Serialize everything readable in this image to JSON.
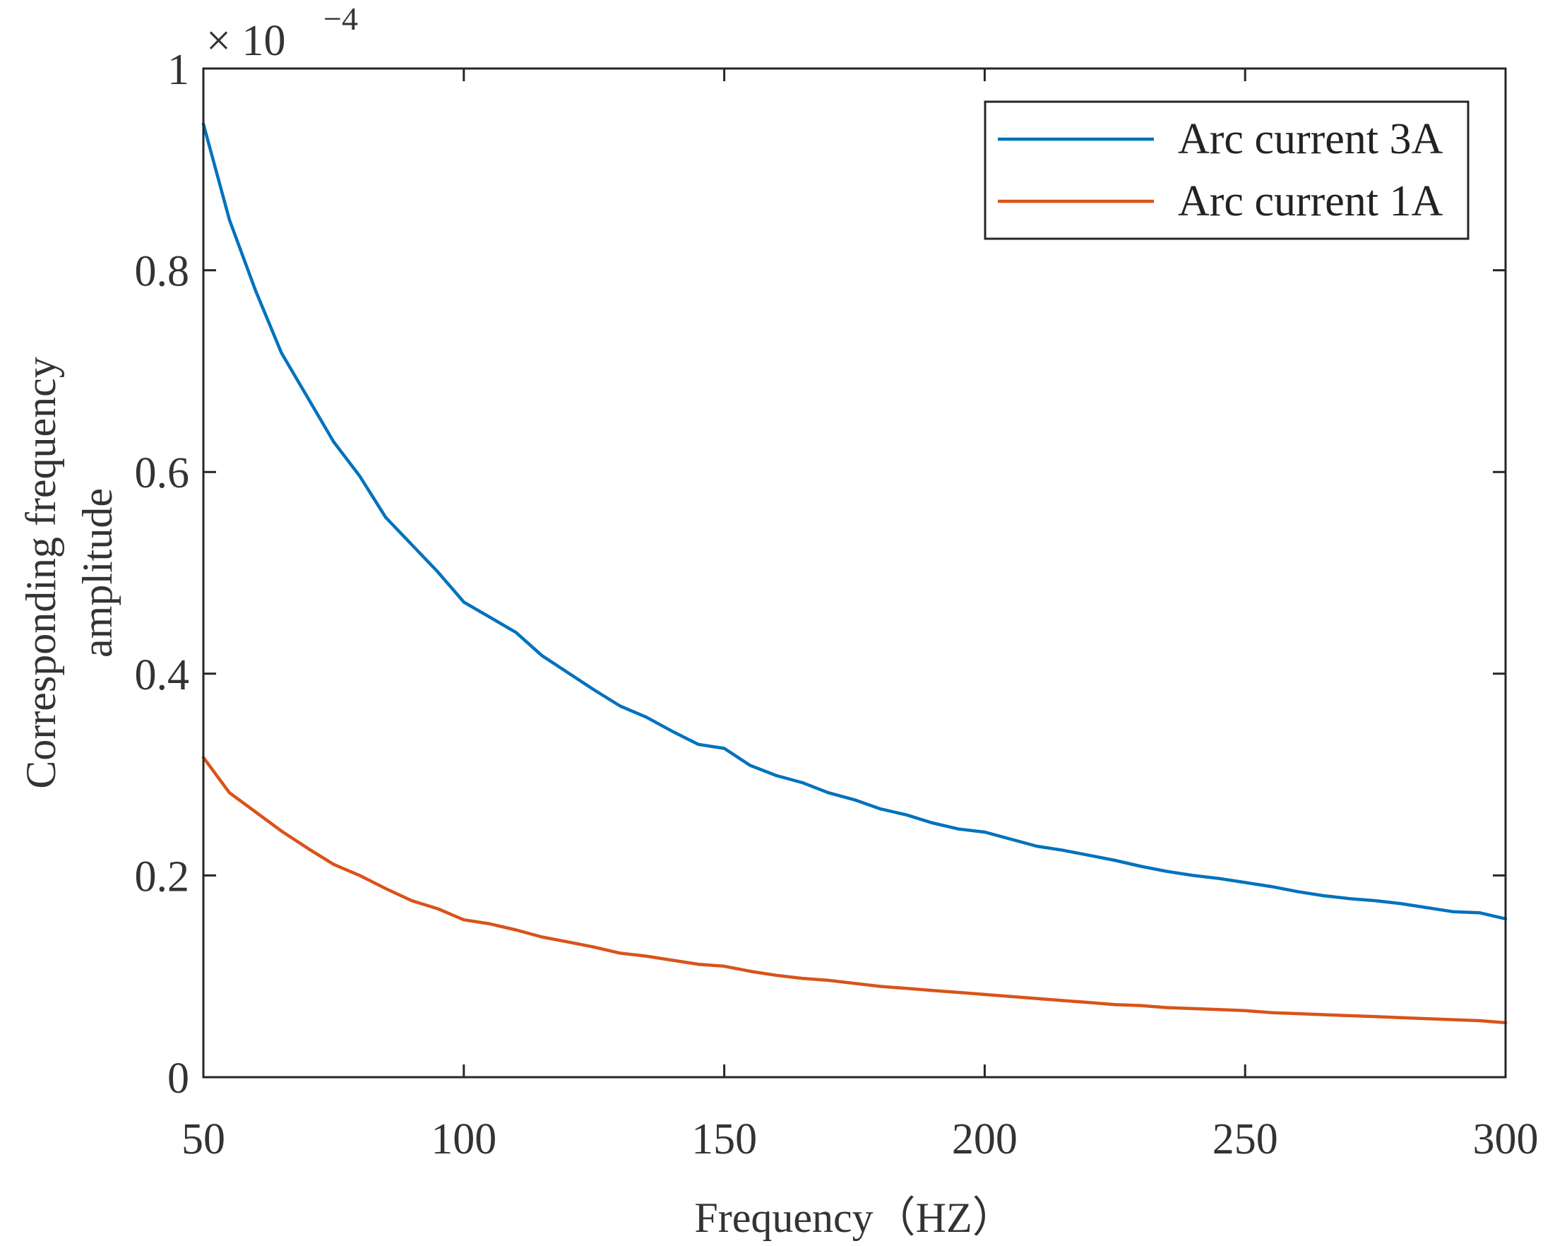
{
  "chart_data": {
    "type": "line",
    "title": "",
    "xlabel": "Frequency（HZ）",
    "ylabel_lines": [
      "Corresponding frequency",
      "amplitude"
    ],
    "y_multiplier": {
      "base": "× 10",
      "exponent": "−4"
    },
    "xlim": [
      50,
      300
    ],
    "ylim": [
      0,
      1
    ],
    "x_ticks": [
      50,
      100,
      150,
      200,
      250,
      300
    ],
    "x_tick_labels": [
      "50",
      "100",
      "150",
      "200",
      "250",
      "300"
    ],
    "y_ticks": [
      0,
      0.2,
      0.4,
      0.6,
      0.8,
      1
    ],
    "y_tick_labels": [
      "0",
      "0.2",
      "0.4",
      "0.6",
      "0.8",
      "1"
    ],
    "grid": false,
    "legend_position": "top-right",
    "x": [
      50,
      55,
      60,
      65,
      70,
      75,
      80,
      85,
      90,
      95,
      100,
      105,
      110,
      115,
      120,
      125,
      130,
      135,
      140,
      145,
      150,
      155,
      160,
      165,
      170,
      175,
      180,
      185,
      190,
      195,
      200,
      205,
      210,
      215,
      220,
      225,
      230,
      235,
      240,
      245,
      250,
      255,
      260,
      265,
      270,
      275,
      280,
      285,
      290,
      295,
      300
    ],
    "series": [
      {
        "name": "Arc current 3A",
        "color": "#0072BD",
        "values": [
          0.945,
          0.85,
          0.78,
          0.718,
          0.674,
          0.63,
          0.596,
          0.555,
          0.528,
          0.501,
          0.471,
          0.456,
          0.441,
          0.418,
          0.401,
          0.384,
          0.368,
          0.357,
          0.343,
          0.33,
          0.326,
          0.309,
          0.299,
          0.292,
          0.282,
          0.275,
          0.266,
          0.26,
          0.252,
          0.246,
          0.243,
          0.236,
          0.229,
          0.225,
          0.22,
          0.215,
          0.209,
          0.204,
          0.2,
          0.197,
          0.193,
          0.189,
          0.184,
          0.18,
          0.177,
          0.175,
          0.172,
          0.168,
          0.164,
          0.163,
          0.157
        ]
      },
      {
        "name": "Arc current 1A",
        "color": "#D95319",
        "values": [
          0.317,
          0.282,
          0.263,
          0.244,
          0.227,
          0.211,
          0.2,
          0.187,
          0.175,
          0.167,
          0.156,
          0.152,
          0.146,
          0.139,
          0.134,
          0.129,
          0.123,
          0.12,
          0.116,
          0.112,
          0.11,
          0.105,
          0.101,
          0.098,
          0.096,
          0.093,
          0.09,
          0.088,
          0.086,
          0.084,
          0.082,
          0.08,
          0.078,
          0.076,
          0.074,
          0.072,
          0.071,
          0.069,
          0.068,
          0.067,
          0.066,
          0.064,
          0.063,
          0.062,
          0.061,
          0.06,
          0.059,
          0.058,
          0.057,
          0.056,
          0.054
        ]
      }
    ]
  }
}
